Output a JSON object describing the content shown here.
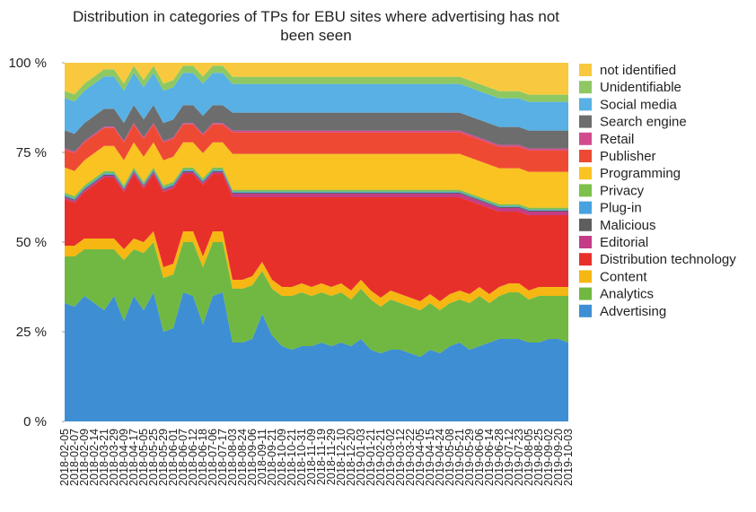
{
  "chart_data": {
    "type": "stacked_area",
    "title": "Distribution in categories of TPs for EBU sites where advertising has not been seen",
    "categories": [
      "2018-02-05",
      "2018-02-07",
      "2018-02-09",
      "2018-02-14",
      "2018-03-21",
      "2018-03-29",
      "2018-04-09",
      "2018-04-17",
      "2018-05-05",
      "2018-05-25",
      "2018-05-29",
      "2018-06-01",
      "2018-06-07",
      "2018-06-12",
      "2018-06-18",
      "2018-07-06",
      "2018-07-17",
      "2018-08-03",
      "2018-08-24",
      "2018-09-06",
      "2018-09-11",
      "2018-09-21",
      "2018-10-09",
      "2018-10-21",
      "2018-10-31",
      "2018-11-09",
      "2018-11-19",
      "2018-11-29",
      "2018-12-10",
      "2018-12-20",
      "2019-01-03",
      "2019-01-21",
      "2019-02-21",
      "2019-03-02",
      "2019-03-12",
      "2019-03-22",
      "2019-04-05",
      "2019-04-15",
      "2019-04-24",
      "2019-05-08",
      "2019-05-21",
      "2019-05-29",
      "2019-06-06",
      "2019-06-14",
      "2019-06-28",
      "2019-07-12",
      "2019-07-23",
      "2019-08-05",
      "2019-08-25",
      "2019-09-02",
      "2019-09-20",
      "2019-10-03"
    ],
    "ylim": [
      0,
      100
    ],
    "yticks": [
      {
        "value": 0,
        "label": "0 %"
      },
      {
        "value": 25,
        "label": "25 %"
      },
      {
        "value": 50,
        "label": "50 %"
      },
      {
        "value": 75,
        "label": "75 %"
      },
      {
        "value": 100,
        "label": "100 %"
      }
    ],
    "legend": "right",
    "series": [
      {
        "name": "Advertising",
        "color": "#3e8ed3",
        "values": [
          33,
          32,
          35,
          33,
          31,
          35,
          28,
          35,
          31,
          36,
          25,
          26,
          36,
          35,
          27,
          35,
          36,
          22,
          22,
          23,
          30,
          24,
          21,
          20,
          21,
          21,
          22,
          21,
          22,
          21,
          23,
          20,
          19,
          20,
          20,
          19,
          18,
          20,
          19,
          21,
          22,
          20,
          21,
          22,
          23,
          23,
          23,
          22,
          22,
          23,
          23,
          22
        ]
      },
      {
        "name": "Analytics",
        "color": "#71b843",
        "values": [
          13,
          14,
          13,
          15,
          17,
          13,
          17,
          13,
          16,
          14,
          15,
          15,
          14,
          15,
          16,
          15,
          14,
          15,
          15,
          15,
          12,
          13,
          14,
          15,
          15,
          14,
          14,
          14,
          14,
          13,
          14,
          14,
          13,
          14,
          13,
          13,
          13,
          13,
          12,
          12,
          12,
          13,
          14,
          11,
          12,
          13,
          13,
          12,
          13,
          12,
          12,
          13
        ]
      },
      {
        "name": "Content",
        "color": "#f6b713",
        "values": [
          3,
          3,
          3,
          3,
          3,
          3,
          3,
          3,
          3,
          3,
          3,
          3,
          3,
          3,
          3,
          3,
          3,
          2.5,
          2.5,
          2.5,
          2.5,
          2.5,
          2.5,
          2.5,
          2.5,
          2.5,
          2.5,
          2.5,
          2.5,
          2.5,
          2.5,
          2.5,
          2.5,
          2.5,
          2.5,
          2.5,
          2.5,
          2.5,
          2.5,
          2.5,
          2.5,
          2.5,
          2.5,
          2.5,
          2.5,
          2.5,
          2.5,
          2.5,
          2.5,
          2.5,
          2.5,
          2.5
        ]
      },
      {
        "name": "Distribution technology",
        "color": "#e8302a",
        "values": [
          13,
          12,
          13,
          15,
          17,
          17,
          16,
          18,
          15,
          16,
          21,
          21,
          16,
          16,
          20,
          16,
          16,
          23,
          23,
          22,
          18,
          23,
          25,
          25,
          24,
          25,
          24,
          25,
          24,
          26,
          23,
          26,
          28,
          26,
          27,
          28,
          29,
          27,
          29,
          27,
          26,
          26,
          23,
          24,
          21,
          20,
          20,
          21,
          20,
          20,
          20,
          20
        ]
      },
      {
        "name": "Editorial",
        "color": "#c43c86",
        "values": [
          0.5,
          0.5,
          0.5,
          0.5,
          0.5,
          0.5,
          0.5,
          0.5,
          0.5,
          0.5,
          0.5,
          0.5,
          0.5,
          0.5,
          0.5,
          0.5,
          0.5,
          1,
          1,
          1,
          1,
          1,
          1,
          1,
          1,
          1,
          1,
          1,
          1,
          1,
          1,
          1,
          1,
          1,
          1,
          1,
          1,
          1,
          1,
          1,
          1,
          1,
          1,
          1,
          1,
          1,
          1,
          1,
          1,
          1,
          1,
          1
        ]
      },
      {
        "name": "Malicious",
        "color": "#5e5e5e",
        "values": [
          0.3,
          0.3,
          0.3,
          0.3,
          0.3,
          0.3,
          0.3,
          0.3,
          0.3,
          0.3,
          0.3,
          0.3,
          0.3,
          0.3,
          0.3,
          0.3,
          0.3,
          0.3,
          0.3,
          0.3,
          0.3,
          0.3,
          0.3,
          0.3,
          0.3,
          0.3,
          0.3,
          0.3,
          0.3,
          0.3,
          0.3,
          0.3,
          0.3,
          0.3,
          0.3,
          0.3,
          0.3,
          0.3,
          0.3,
          0.3,
          0.3,
          0.3,
          0.3,
          0.3,
          0.3,
          0.3,
          0.3,
          0.3,
          0.3,
          0.3,
          0.3,
          0.3
        ]
      },
      {
        "name": "Plug-in",
        "color": "#47a2df",
        "values": [
          0.4,
          0.4,
          0.4,
          0.4,
          0.4,
          0.4,
          0.4,
          0.4,
          0.4,
          0.4,
          0.4,
          0.4,
          0.4,
          0.4,
          0.4,
          0.4,
          0.4,
          0.3,
          0.3,
          0.3,
          0.3,
          0.3,
          0.3,
          0.3,
          0.3,
          0.3,
          0.3,
          0.3,
          0.3,
          0.3,
          0.3,
          0.3,
          0.3,
          0.3,
          0.3,
          0.3,
          0.3,
          0.3,
          0.3,
          0.3,
          0.3,
          0.3,
          0.3,
          0.3,
          0.3,
          0.3,
          0.3,
          0.3,
          0.3,
          0.3,
          0.3,
          0.3
        ]
      },
      {
        "name": "Privacy",
        "color": "#7dc04b",
        "values": [
          0.6,
          0.6,
          0.6,
          0.6,
          0.6,
          0.6,
          0.6,
          0.6,
          0.6,
          0.6,
          0.6,
          0.6,
          0.6,
          0.6,
          0.6,
          0.6,
          0.6,
          0.5,
          0.5,
          0.5,
          0.5,
          0.5,
          0.5,
          0.5,
          0.5,
          0.5,
          0.5,
          0.5,
          0.5,
          0.5,
          0.5,
          0.5,
          0.5,
          0.5,
          0.5,
          0.5,
          0.5,
          0.5,
          0.5,
          0.5,
          0.5,
          0.5,
          0.5,
          0.5,
          0.5,
          0.5,
          0.5,
          0.5,
          0.5,
          0.5,
          0.5,
          0.5
        ]
      },
      {
        "name": "Programming",
        "color": "#f9c322",
        "values": [
          7,
          7,
          7,
          7,
          7,
          7,
          7,
          7,
          7,
          7,
          7,
          7,
          7,
          7,
          7,
          7,
          7,
          10,
          10,
          10,
          10,
          10,
          10,
          10,
          10,
          10,
          10,
          10,
          10,
          10,
          10,
          10,
          10,
          10,
          10,
          10,
          10,
          10,
          10,
          10,
          10,
          10,
          10,
          10,
          10,
          10,
          10,
          10,
          10,
          10,
          10,
          10
        ]
      },
      {
        "name": "Publisher",
        "color": "#ee4a33",
        "values": [
          5,
          5,
          5,
          5,
          5,
          5,
          5,
          5,
          5,
          5,
          5,
          5,
          5,
          5,
          5,
          5,
          5,
          6,
          6,
          6,
          6,
          6,
          6,
          6,
          6,
          6,
          6,
          6,
          6,
          6,
          6,
          6,
          6,
          6,
          6,
          6,
          6,
          6,
          6,
          6,
          6,
          6,
          6,
          6,
          6,
          6,
          6,
          6,
          6,
          6,
          6,
          6
        ]
      },
      {
        "name": "Retail",
        "color": "#d24b8d",
        "values": [
          0.4,
          0.4,
          0.4,
          0.4,
          0.4,
          0.4,
          0.4,
          0.4,
          0.4,
          0.4,
          0.4,
          0.4,
          0.4,
          0.4,
          0.4,
          0.4,
          0.4,
          0.5,
          0.5,
          0.5,
          0.5,
          0.5,
          0.5,
          0.5,
          0.5,
          0.5,
          0.5,
          0.5,
          0.5,
          0.5,
          0.5,
          0.5,
          0.5,
          0.5,
          0.5,
          0.5,
          0.5,
          0.5,
          0.5,
          0.5,
          0.5,
          0.5,
          0.5,
          0.5,
          0.5,
          0.5,
          0.5,
          0.5,
          0.5,
          0.5,
          0.5,
          0.5
        ]
      },
      {
        "name": "Search engine",
        "color": "#6d6d6d",
        "values": [
          5,
          5,
          5,
          5,
          5,
          5,
          5,
          5,
          5,
          5,
          5,
          5,
          5,
          5,
          5,
          5,
          5,
          5,
          5,
          5,
          5,
          5,
          5,
          5,
          5,
          5,
          5,
          5,
          5,
          5,
          5,
          5,
          5,
          5,
          5,
          5,
          5,
          5,
          5,
          5,
          5,
          5,
          5,
          5,
          5,
          5,
          5,
          5,
          5,
          5,
          5,
          5
        ]
      },
      {
        "name": "Social media",
        "color": "#58b0e4",
        "values": [
          9,
          9,
          9,
          9,
          9,
          9,
          9,
          9,
          9,
          9,
          9,
          9,
          9,
          9,
          9,
          9,
          9,
          8,
          8,
          8,
          8,
          8,
          8,
          8,
          8,
          8,
          8,
          8,
          8,
          8,
          8,
          8,
          8,
          8,
          8,
          8,
          8,
          8,
          8,
          8,
          8,
          8,
          8,
          8,
          8,
          8,
          8,
          8,
          8,
          8,
          8,
          8
        ]
      },
      {
        "name": "Unidentifiable",
        "color": "#8ec863",
        "values": [
          2,
          2,
          2,
          2,
          2,
          2,
          2,
          2,
          2,
          2,
          2,
          2,
          2,
          2,
          2,
          2,
          2,
          2,
          2,
          2,
          2,
          2,
          2,
          2,
          2,
          2,
          2,
          2,
          2,
          2,
          2,
          2,
          2,
          2,
          2,
          2,
          2,
          2,
          2,
          2,
          2,
          2,
          2,
          2,
          2,
          2,
          2,
          2,
          2,
          2,
          2,
          2
        ]
      },
      {
        "name": "not identified",
        "color": "#f8c93e",
        "values": [
          7.8,
          8.8,
          5.8,
          3.8,
          1.8,
          1.8,
          5.8,
          0.8,
          4.8,
          0.8,
          5.8,
          4.8,
          0.8,
          0.8,
          3.8,
          0.8,
          0.8,
          3.9,
          3.9,
          3.9,
          3.9,
          3.9,
          3.9,
          3.9,
          3.9,
          3.9,
          3.9,
          3.9,
          3.9,
          3.9,
          3.9,
          3.9,
          3.9,
          3.9,
          3.9,
          3.9,
          3.9,
          3.9,
          3.9,
          3.9,
          3.9,
          4.9,
          5.9,
          6.9,
          7.9,
          7.9,
          7.9,
          8.9,
          8.9,
          8.9,
          8.9,
          8.9
        ]
      }
    ]
  }
}
